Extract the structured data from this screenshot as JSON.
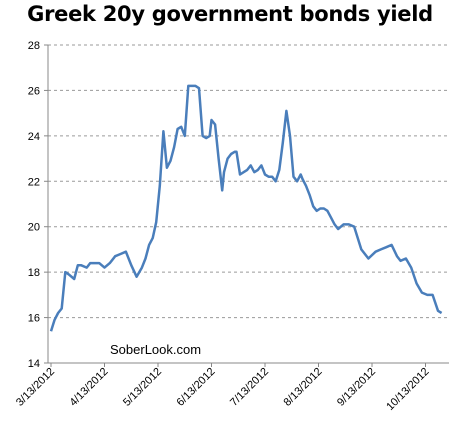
{
  "chart_data": {
    "type": "line",
    "title": "Greek 20y government bonds yield",
    "annotation": "SoberLook.com",
    "xlabel": "",
    "ylabel": "",
    "ylim": [
      14,
      28
    ],
    "y_ticks": [
      14,
      16,
      18,
      20,
      22,
      24,
      26,
      28
    ],
    "x_tick_labels": [
      "3/13/2012",
      "4/13/2012",
      "5/13/2012",
      "6/13/2012",
      "7/13/2012",
      "8/13/2012",
      "9/13/2012",
      "10/13/2012"
    ],
    "grid": "horizontal dashed",
    "line_color": "#4a7ebb",
    "series": [
      {
        "x": [
          "2012-03-13",
          "2012-03-15",
          "2012-03-17",
          "2012-03-19",
          "2012-03-21",
          "2012-03-23",
          "2012-03-26",
          "2012-03-28",
          "2012-03-30",
          "2012-04-02",
          "2012-04-04",
          "2012-04-06",
          "2012-04-09",
          "2012-04-12",
          "2012-04-15",
          "2012-04-18",
          "2012-04-21",
          "2012-04-24",
          "2012-04-27",
          "2012-04-30",
          "2012-05-03",
          "2012-05-05",
          "2012-05-07",
          "2012-05-09",
          "2012-05-11",
          "2012-05-13",
          "2012-05-15",
          "2012-05-17",
          "2012-05-19",
          "2012-05-21",
          "2012-05-23",
          "2012-05-25",
          "2012-05-27",
          "2012-05-29",
          "2012-05-31",
          "2012-06-02",
          "2012-06-04",
          "2012-06-06",
          "2012-06-08",
          "2012-06-10",
          "2012-06-11",
          "2012-06-13",
          "2012-06-15",
          "2012-06-17",
          "2012-06-18",
          "2012-06-20",
          "2012-06-22",
          "2012-06-24",
          "2012-06-25",
          "2012-06-27",
          "2012-06-29",
          "2012-07-01",
          "2012-07-03",
          "2012-07-05",
          "2012-07-07",
          "2012-07-09",
          "2012-07-11",
          "2012-07-13",
          "2012-07-15",
          "2012-07-17",
          "2012-07-19",
          "2012-07-21",
          "2012-07-23",
          "2012-07-25",
          "2012-07-27",
          "2012-07-29",
          "2012-07-31",
          "2012-08-01",
          "2012-08-03",
          "2012-08-05",
          "2012-08-07",
          "2012-08-09",
          "2012-08-11",
          "2012-08-13",
          "2012-08-15",
          "2012-08-17",
          "2012-08-19",
          "2012-08-21",
          "2012-08-24",
          "2012-08-27",
          "2012-08-30",
          "2012-09-03",
          "2012-09-07",
          "2012-09-11",
          "2012-09-14",
          "2012-09-17",
          "2012-09-20",
          "2012-09-23",
          "2012-09-25",
          "2012-09-28",
          "2012-10-01",
          "2012-10-04",
          "2012-10-07",
          "2012-10-10",
          "2012-10-13",
          "2012-10-16",
          "2012-10-18"
        ],
        "y": [
          15.4,
          15.9,
          16.2,
          16.4,
          18.0,
          17.9,
          17.7,
          18.3,
          18.3,
          18.2,
          18.4,
          18.4,
          18.4,
          18.2,
          18.4,
          18.7,
          18.8,
          18.9,
          18.3,
          17.8,
          18.2,
          18.6,
          19.2,
          19.5,
          20.2,
          21.8,
          24.2,
          22.6,
          22.9,
          23.5,
          24.3,
          24.4,
          24.0,
          26.2,
          26.2,
          26.2,
          26.1,
          24.0,
          23.9,
          24.0,
          24.7,
          24.5,
          23.0,
          21.6,
          22.4,
          23.0,
          23.2,
          23.3,
          23.3,
          22.3,
          22.4,
          22.5,
          22.7,
          22.4,
          22.5,
          22.7,
          22.3,
          22.2,
          22.2,
          22.0,
          22.5,
          23.7,
          25.1,
          24.0,
          22.2,
          22.0,
          22.3,
          22.1,
          21.8,
          21.4,
          20.9,
          20.7,
          20.8,
          20.8,
          20.7,
          20.4,
          20.1,
          19.9,
          20.1,
          20.1,
          20.0,
          19.0,
          18.6,
          18.9,
          19.0,
          19.1,
          19.2,
          18.7,
          18.5,
          18.6,
          18.2,
          17.5,
          17.1,
          17.0,
          17.0,
          16.3,
          16.2
        ]
      }
    ]
  }
}
